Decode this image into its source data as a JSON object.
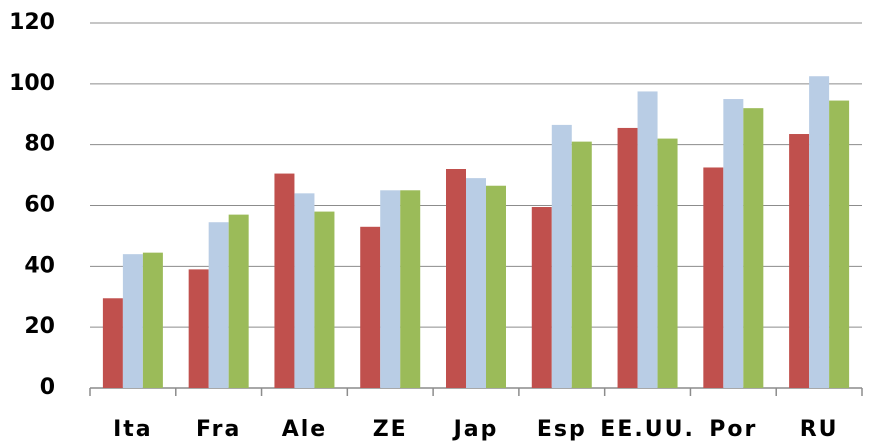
{
  "chart_data": {
    "type": "bar",
    "categories": [
      "Ita",
      "Fra",
      "Ale",
      "ZE",
      "Jap",
      "Esp",
      "EE.UU.",
      "Por",
      "RU"
    ],
    "series": [
      {
        "color": "#c0504d",
        "values": [
          29.5,
          39,
          70.5,
          53,
          72,
          59.5,
          85.5,
          72.5,
          83.5
        ]
      },
      {
        "color": "#b9cde5",
        "values": [
          44,
          54.5,
          64,
          65,
          69,
          86.5,
          97.5,
          95,
          102.5
        ]
      },
      {
        "color": "#9bbb59",
        "values": [
          44.5,
          57,
          58,
          65,
          66.5,
          81,
          82,
          92,
          94.5
        ]
      }
    ],
    "ylim": [
      0,
      120
    ],
    "yticks": [
      0,
      20,
      40,
      60,
      80,
      100,
      120
    ],
    "grid": true
  }
}
